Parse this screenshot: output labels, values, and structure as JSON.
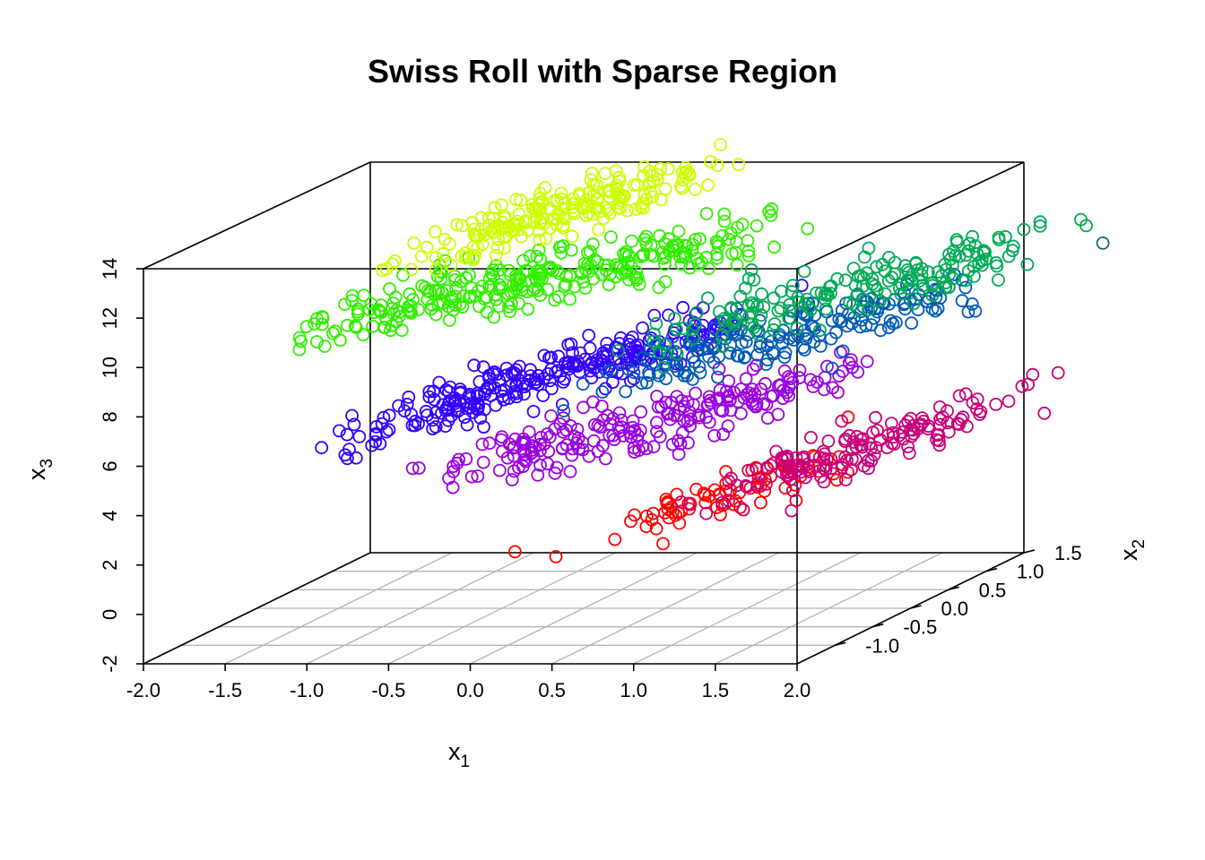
{
  "chart_data": {
    "type": "scatter",
    "title": "Swiss Roll with Sparse Region",
    "axes": {
      "x1": {
        "label": "x",
        "subscript": "1",
        "range": [
          -2.0,
          2.0
        ],
        "ticks": [
          "-2.0",
          "-1.5",
          "-1.0",
          "-0.5",
          "0.0",
          "0.5",
          "1.0",
          "1.5",
          "2.0"
        ]
      },
      "x2": {
        "label": "x",
        "subscript": "2",
        "range": [
          -1.5,
          1.5
        ],
        "ticks": [
          "-1.0",
          "-0.5",
          "0.0",
          "0.5",
          "1.0",
          "1.5"
        ]
      },
      "x3": {
        "label": "x",
        "subscript": "3",
        "range": [
          -2,
          14
        ],
        "ticks": [
          "-2",
          "0",
          "2",
          "4",
          "6",
          "8",
          "10",
          "12",
          "14"
        ]
      }
    },
    "projection": "3d box, perspective view",
    "grid": "on (floor)",
    "marker": "open circle",
    "color_scale": "rainbow by roll parameter (red → magenta → purple → blue → teal → green → yellow)",
    "clusters": [
      {
        "color": "#ff0000",
        "x1": [
          0.5,
          1.3
        ],
        "x3": [
          2.2,
          3.3
        ],
        "n": 80
      },
      {
        "color": "#c8007a",
        "x1": [
          1.0,
          2.4
        ],
        "x3": [
          3.0,
          6.0
        ],
        "n": 150
      },
      {
        "color": "#9a00e0",
        "x1": [
          -0.6,
          1.4
        ],
        "x3": [
          4.0,
          7.2
        ],
        "n": 230
      },
      {
        "color": "#3300ff",
        "x1": [
          -1.2,
          0.8
        ],
        "x3": [
          5.5,
          9.5
        ],
        "n": 280
      },
      {
        "color": "#005ab4",
        "x1": [
          0.4,
          2.2
        ],
        "x3": [
          8.0,
          10.5
        ],
        "n": 180
      },
      {
        "color": "#00aa55",
        "x1": [
          0.6,
          2.6
        ],
        "x3": [
          9.5,
          12.5
        ],
        "n": 180
      },
      {
        "color": "#33ee00",
        "x1": [
          -1.4,
          0.9
        ],
        "x3": [
          10.0,
          13.0
        ],
        "n": 300
      },
      {
        "color": "#ccff00",
        "x1": [
          -0.8,
          0.6
        ],
        "x3": [
          13.0,
          15.5
        ],
        "n": 200
      }
    ],
    "sparse_outliers": [
      {
        "x1": -0.05,
        "x2": -0.8,
        "x3": 1.5,
        "color": "#ff0000"
      },
      {
        "x1": 0.2,
        "x2": -0.8,
        "x3": 1.3,
        "color": "#ff0000"
      },
      {
        "x1": 2.9,
        "x2": 0.6,
        "x3": 12.0,
        "color": "#1a6b6b"
      }
    ]
  }
}
